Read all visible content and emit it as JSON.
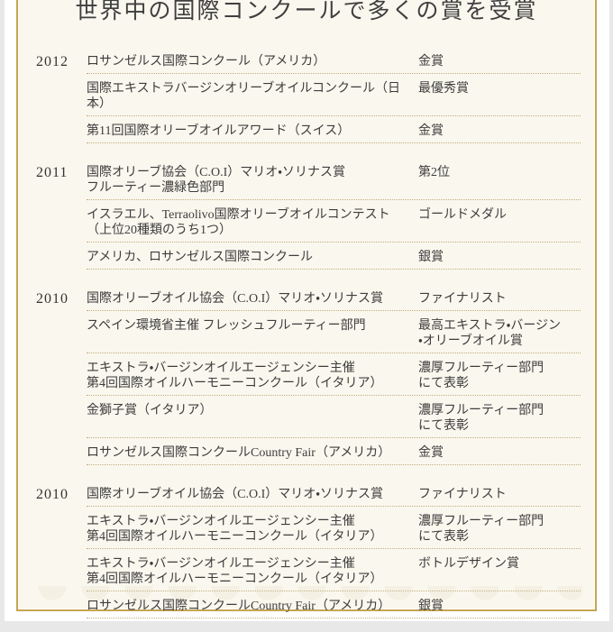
{
  "colors": {
    "page_background": "#e8e8e8",
    "card_background": "#ffffff",
    "panel_background": "#faf7ee",
    "panel_border": "#c6a652",
    "row_divider": "#c2ae7e",
    "text": "#3d3d3d"
  },
  "header": {
    "title": "世界中の国際コンクールで多くの賞を受賞"
  },
  "awards": {
    "sections": [
      {
        "year": "2012",
        "entries": [
          {
            "name": "ロサンゼルス国際コンクール（アメリカ）",
            "award": "金賞"
          },
          {
            "name": "国際エキストラバージンオリーブオイルコンクール（日本）",
            "award": "最優秀賞"
          },
          {
            "name": "第11回国際オリーブオイルアワード（スイス）",
            "award": "金賞"
          }
        ]
      },
      {
        "year": "2011",
        "entries": [
          {
            "name": "国際オリーブ協会（C.O.I）マリオ・ソリナス賞\nフルーティー濃緑色部門",
            "award": "第2位"
          },
          {
            "name": "イスラエル、Terraolivo国際オリーブオイルコンテスト\n（上位20種類のうち1つ）",
            "award": "ゴールドメダル"
          },
          {
            "name": "アメリカ、ロサンゼルス国際コンクール",
            "award": "銀賞"
          }
        ]
      },
      {
        "year": "2010",
        "entries": [
          {
            "name": "国際オリーブオイル協会（C.O.I）マリオ・ソリナス賞",
            "award": "ファイナリスト"
          },
          {
            "name": "スペイン環境省主催 フレッシュフルーティー部門",
            "award": "最高エキストラ・バージン\n・オリーブオイル賞"
          },
          {
            "name": "エキストラ・バージンオイルエージェンシー主催\n第4回国際オイルハーモニーコンクール（イタリア）",
            "award": "濃厚フルーティー部門\nにて表彰"
          },
          {
            "name": "金獅子賞（イタリア）",
            "award": "濃厚フルーティー部門\nにて表彰"
          },
          {
            "name": "ロサンゼルス国際コンクールCountry Fair（アメリカ）",
            "award": "金賞"
          }
        ]
      },
      {
        "year": "2010",
        "entries": [
          {
            "name": "国際オリーブオイル協会（C.O.I）マリオ・ソリナス賞",
            "award": "ファイナリスト"
          },
          {
            "name": "エキストラ・バージンオイルエージェンシー主催\n第4回国際オイルハーモニーコンクール（イタリア）",
            "award": "濃厚フルーティー部門\nにて表彰"
          },
          {
            "name": "エキストラ・バージンオイルエージェンシー主催\n第4回国際オイルハーモニーコンクール（イタリア）",
            "award": "ボトルデザイン賞"
          },
          {
            "name": "ロサンゼルス国際コンクールCountry Fair（アメリカ）",
            "award": "銀賞"
          }
        ]
      }
    ]
  }
}
